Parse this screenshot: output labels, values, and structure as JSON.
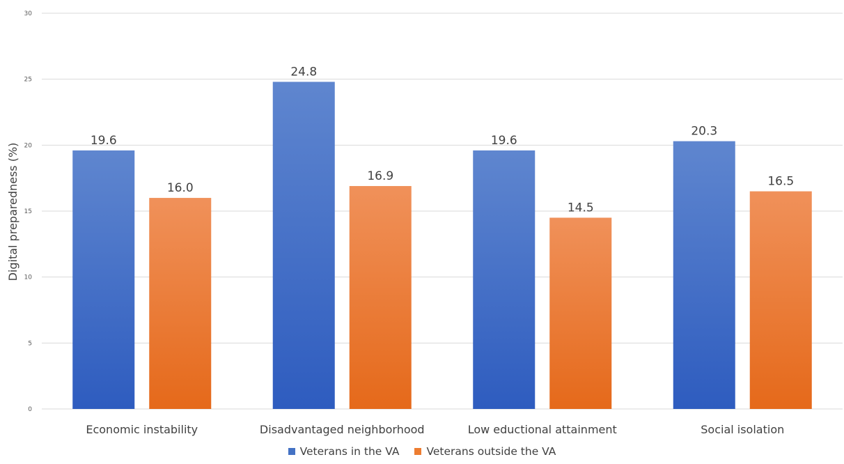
{
  "chart_data": {
    "type": "bar",
    "title": "",
    "xlabel": "",
    "ylabel": "Digital preparedness (%)",
    "ylim": [
      0,
      30
    ],
    "yticks": [
      0,
      5,
      10,
      15,
      20,
      25,
      30
    ],
    "grid": true,
    "legend_position": "bottom",
    "categories": [
      "Economic instability",
      "Disadvantaged neighborhood",
      "Low eductional attainment",
      "Social isolation"
    ],
    "series": [
      {
        "name": "Veterans in the VA",
        "values": [
          19.6,
          24.8,
          19.6,
          20.3
        ],
        "color": "#4472c4",
        "labels": [
          "19.6",
          "24.8",
          "19.6",
          "20.3"
        ]
      },
      {
        "name": "Veterans outside the VA",
        "values": [
          16.0,
          16.9,
          14.5,
          16.5
        ],
        "color": "#ed7d31",
        "labels": [
          "16.0",
          "16.9",
          "14.5",
          "16.5"
        ]
      }
    ]
  }
}
